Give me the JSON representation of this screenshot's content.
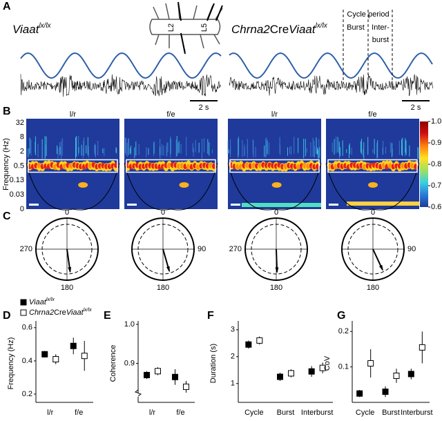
{
  "panel_labels": [
    "A",
    "B",
    "C",
    "D",
    "E",
    "F",
    "G"
  ],
  "panel_a": {
    "left_genotype": {
      "main": "Viaat",
      "sup": "lx/lx"
    },
    "right_genotype": {
      "main1": "Chrna2",
      "sup1": "Cre",
      "main2": "Viaat",
      "sup2": "lx/lx"
    },
    "diagram_labels": [
      "L2",
      "L5"
    ],
    "annotations": {
      "cycle": "Cycle period",
      "burst": "Burst",
      "interburst_1": "Inter-",
      "interburst_2": "burst"
    },
    "scale_bars": [
      "2 s",
      "2 s"
    ]
  },
  "panel_b": {
    "column_titles": [
      "l/r",
      "f/e",
      "l/r",
      "f/e"
    ],
    "ylabel": "Frequency (Hz)",
    "yticks": [
      32,
      8,
      2,
      0.5,
      0.13,
      0.03,
      0
    ],
    "colorbar": {
      "range": [
        0.6,
        1.0
      ],
      "ticks": [
        {
          "value": 1.0,
          "label": "1.0"
        },
        0.9,
        0.8,
        0.7,
        0.6
      ]
    }
  },
  "panel_c": {
    "circles": [
      {
        "top": 0,
        "side": 270,
        "bottom": 180,
        "phase_deg": 172
      },
      {
        "top": 0,
        "side": 90,
        "bottom": 180,
        "phase_deg": 164
      },
      {
        "top": 0,
        "side": 270,
        "bottom": 180,
        "phase_deg": 178
      },
      {
        "top": 0,
        "side": 90,
        "bottom": 180,
        "phase_deg": 155
      }
    ]
  },
  "legend": [
    {
      "main": "Viaat",
      "sup": "lx/lx",
      "marker": "filled"
    },
    {
      "main1": "Chrna2",
      "sup1": "Cre",
      "main2": "Viaat",
      "sup2": "lx/lx",
      "marker": "open"
    }
  ],
  "chart_data": [
    {
      "type": "errorbar",
      "ylabel": "Frequency (Hz)",
      "categories": [
        "l/r",
        "f/e"
      ],
      "ylim": [
        0.15,
        0.62
      ],
      "yticks": [
        0.2,
        0.4,
        0.6
      ],
      "series": [
        {
          "marker": "filled",
          "values": [
            0.44,
            0.49
          ],
          "errors": [
            0.02,
            0.05
          ]
        },
        {
          "marker": "open",
          "values": [
            0.41,
            0.43
          ],
          "errors": [
            0.03,
            0.09
          ]
        }
      ]
    },
    {
      "type": "errorbar",
      "ylabel": "Coherence",
      "categories": [
        "l/r",
        "f/e"
      ],
      "ylim": [
        0.8,
        1.0
      ],
      "yticks": [
        {
          "value": 1.0,
          "label": "1.0"
        },
        0.9
      ],
      "axis_break": true,
      "series": [
        {
          "marker": "filled",
          "values": [
            0.87,
            0.865
          ],
          "errors": [
            0.01,
            0.02
          ]
        },
        {
          "marker": "open",
          "values": [
            0.88,
            0.84
          ],
          "errors": [
            0.01,
            0.015
          ]
        }
      ]
    },
    {
      "type": "errorbar",
      "ylabel": "Duration (s)",
      "categories": [
        "Cycle",
        "Burst",
        "Interburst"
      ],
      "ylim": [
        0.3,
        3.2
      ],
      "yticks": [
        1,
        2,
        3
      ],
      "series": [
        {
          "marker": "filled",
          "values": [
            2.45,
            1.25,
            1.45
          ],
          "errors": [
            0.15,
            0.15,
            0.2
          ]
        },
        {
          "marker": "open",
          "values": [
            2.6,
            1.38,
            1.58
          ],
          "errors": [
            0.15,
            0.15,
            0.2
          ]
        }
      ]
    },
    {
      "type": "errorbar",
      "ylabel": "CoV",
      "categories": [
        "Cycle",
        "Burst",
        "Interburst"
      ],
      "ylim": [
        0,
        0.22
      ],
      "yticks": [
        0.1,
        0.2
      ],
      "series": [
        {
          "marker": "filled",
          "values": [
            0.025,
            0.03,
            0.08
          ],
          "errors": [
            0.01,
            0.015,
            0.015
          ]
        },
        {
          "marker": "open",
          "values": [
            0.11,
            0.075,
            0.155
          ],
          "errors": [
            0.04,
            0.02,
            0.045
          ]
        }
      ]
    }
  ]
}
